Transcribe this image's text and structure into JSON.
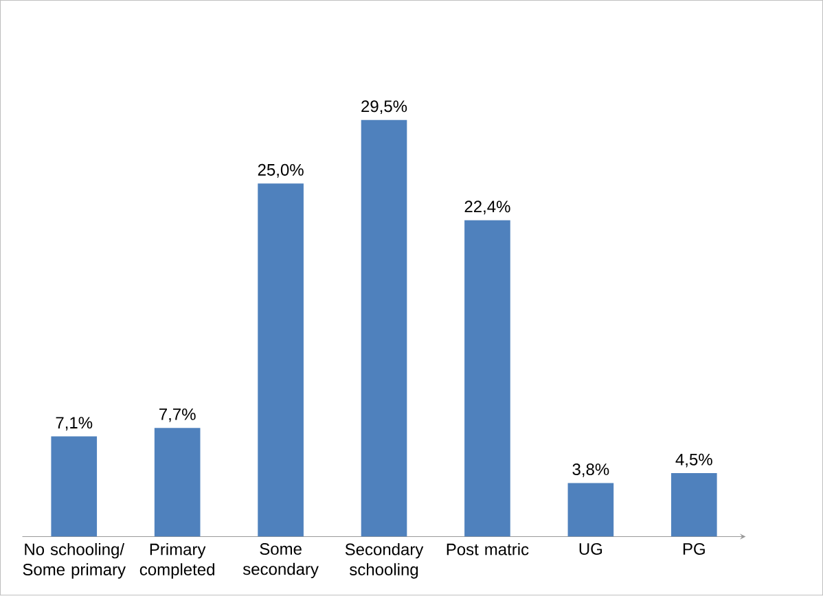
{
  "chart_data": {
    "type": "bar",
    "categories": [
      "No schooling/ Some primary",
      "Primary completed",
      "Some secondary",
      "Secondary schooling",
      "Post matric",
      "UG",
      "PG"
    ],
    "values": [
      7.1,
      7.7,
      25.0,
      29.5,
      22.4,
      3.8,
      4.5
    ],
    "value_labels": [
      "7,1%",
      "7,7%",
      "25,0%",
      "29,5%",
      "22,4%",
      "3,8%",
      "4,5%"
    ],
    "color": "#4f81bd"
  }
}
